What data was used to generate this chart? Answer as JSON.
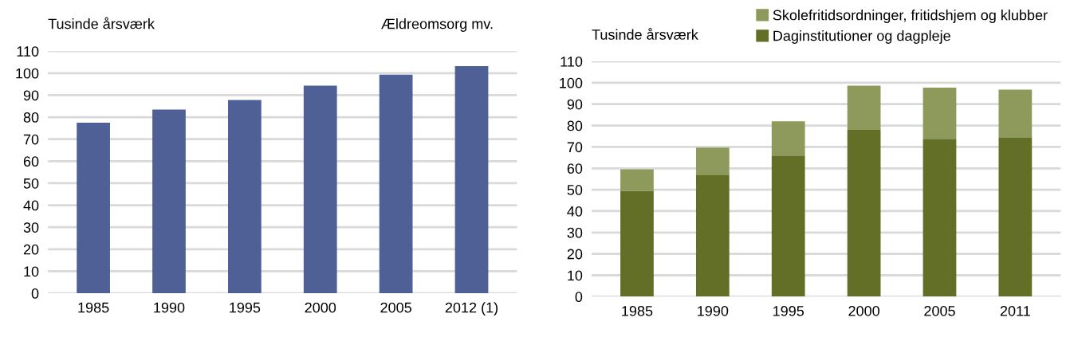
{
  "chart_data": [
    {
      "type": "bar",
      "title": "Ældreomsorg mv.",
      "ylabel": "Tusinde årsværk",
      "categories": [
        "1985",
        "1990",
        "1995",
        "2000",
        "2005",
        "2012 (1)"
      ],
      "series": [
        {
          "color": "#4f6096",
          "values": [
            77.5,
            83.5,
            87.8,
            94.3,
            99.3,
            103.2
          ]
        }
      ],
      "ylim": [
        0,
        110
      ],
      "yticks": [
        0,
        10,
        20,
        30,
        40,
        50,
        60,
        70,
        80,
        90,
        100,
        110
      ],
      "grid": "y"
    },
    {
      "type": "bar",
      "ylabel": "Tusinde årsværk",
      "categories": [
        "1985",
        "1990",
        "1995",
        "2000",
        "2005",
        "2011"
      ],
      "stacked": true,
      "series": [
        {
          "name": "Daginstitutioner og dagpleje",
          "color": "#636f26",
          "values": [
            49.5,
            57,
            66,
            78,
            73.8,
            74.3
          ]
        },
        {
          "name": "Skolefritidsordninger, fritidshjem og klubber",
          "color": "#8d9a5b",
          "values": [
            10,
            12.7,
            16,
            20.7,
            23.9,
            22.5
          ]
        }
      ],
      "ylim": [
        0,
        110
      ],
      "yticks": [
        0,
        10,
        20,
        30,
        40,
        50,
        60,
        70,
        80,
        90,
        100,
        110
      ],
      "grid": "y",
      "legend": "top right"
    }
  ]
}
